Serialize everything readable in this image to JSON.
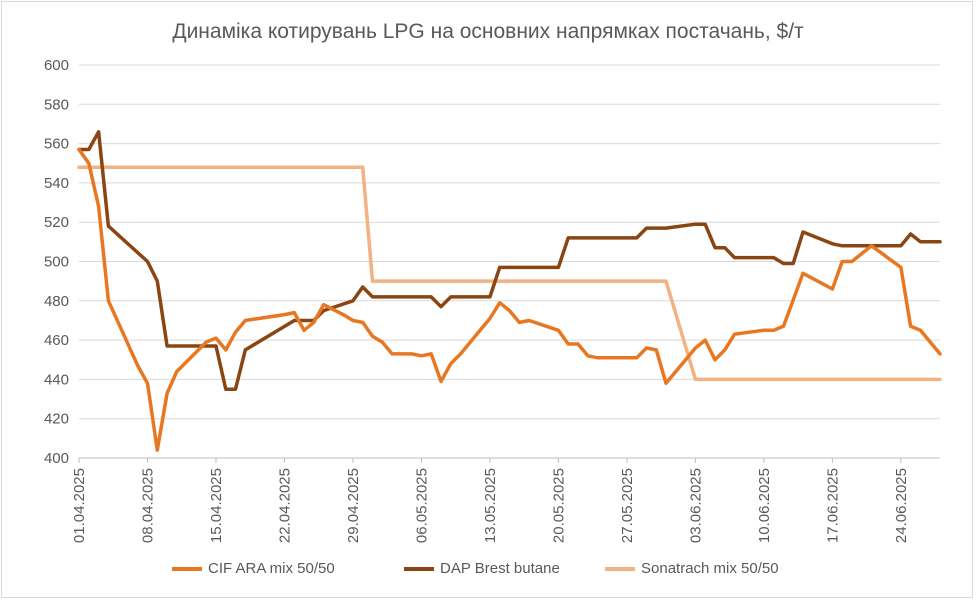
{
  "chart_data": {
    "type": "line",
    "title": "Динаміка котирувань LPG на основних напрямках постачань, $/т",
    "xlabel": "",
    "ylabel": "",
    "ylim": [
      400,
      600
    ],
    "yticks": [
      400,
      420,
      440,
      460,
      480,
      500,
      520,
      540,
      560,
      580,
      600
    ],
    "xlim": [
      "2025-04-01",
      "2025-06-28"
    ],
    "xticks": [
      "01.04.2025",
      "08.04.2025",
      "15.04.2025",
      "22.04.2025",
      "29.04.2025",
      "06.05.2025",
      "13.05.2025",
      "20.05.2025",
      "27.05.2025",
      "03.06.2025",
      "10.06.2025",
      "17.06.2025",
      "24.06.2025"
    ],
    "grid": true,
    "legend_position": "bottom",
    "series": [
      {
        "name": "CIF ARA mix 50/50",
        "color": "#E87722",
        "points": [
          [
            "2025-04-01",
            557
          ],
          [
            "2025-04-02",
            550
          ],
          [
            "2025-04-03",
            528
          ],
          [
            "2025-04-04",
            480
          ],
          [
            "2025-04-07",
            447
          ],
          [
            "2025-04-08",
            438
          ],
          [
            "2025-04-09",
            404
          ],
          [
            "2025-04-10",
            433
          ],
          [
            "2025-04-11",
            444
          ],
          [
            "2025-04-14",
            459
          ],
          [
            "2025-04-15",
            461
          ],
          [
            "2025-04-16",
            455
          ],
          [
            "2025-04-17",
            464
          ],
          [
            "2025-04-18",
            470
          ],
          [
            "2025-04-22",
            473
          ],
          [
            "2025-04-23",
            474
          ],
          [
            "2025-04-24",
            465
          ],
          [
            "2025-04-25",
            469
          ],
          [
            "2025-04-26",
            478
          ],
          [
            "2025-04-28",
            473
          ],
          [
            "2025-04-29",
            470
          ],
          [
            "2025-04-30",
            469
          ],
          [
            "2025-05-01",
            462
          ],
          [
            "2025-05-02",
            459
          ],
          [
            "2025-05-03",
            453
          ],
          [
            "2025-05-05",
            453
          ],
          [
            "2025-05-06",
            452
          ],
          [
            "2025-05-07",
            453
          ],
          [
            "2025-05-08",
            439
          ],
          [
            "2025-05-09",
            448
          ],
          [
            "2025-05-10",
            453
          ],
          [
            "2025-05-12",
            465
          ],
          [
            "2025-05-13",
            471
          ],
          [
            "2025-05-14",
            479
          ],
          [
            "2025-05-15",
            475
          ],
          [
            "2025-05-16",
            469
          ],
          [
            "2025-05-17",
            470
          ],
          [
            "2025-05-20",
            465
          ],
          [
            "2025-05-21",
            458
          ],
          [
            "2025-05-22",
            458
          ],
          [
            "2025-05-23",
            452
          ],
          [
            "2025-05-24",
            451
          ],
          [
            "2025-05-27",
            451
          ],
          [
            "2025-05-28",
            451
          ],
          [
            "2025-05-29",
            456
          ],
          [
            "2025-05-30",
            455
          ],
          [
            "2025-05-31",
            438
          ],
          [
            "2025-06-03",
            456
          ],
          [
            "2025-06-04",
            460
          ],
          [
            "2025-06-05",
            450
          ],
          [
            "2025-06-06",
            455
          ],
          [
            "2025-06-07",
            463
          ],
          [
            "2025-06-10",
            465
          ],
          [
            "2025-06-11",
            465
          ],
          [
            "2025-06-12",
            467
          ],
          [
            "2025-06-14",
            494
          ],
          [
            "2025-06-17",
            486
          ],
          [
            "2025-06-18",
            500
          ],
          [
            "2025-06-19",
            500
          ],
          [
            "2025-06-21",
            508
          ],
          [
            "2025-06-24",
            497
          ],
          [
            "2025-06-25",
            467
          ],
          [
            "2025-06-26",
            465
          ],
          [
            "2025-06-28",
            453
          ]
        ]
      },
      {
        "name": "DAP Brest butane",
        "color": "#8B4513",
        "points": [
          [
            "2025-04-01",
            557
          ],
          [
            "2025-04-02",
            557
          ],
          [
            "2025-04-03",
            566
          ],
          [
            "2025-04-04",
            518
          ],
          [
            "2025-04-08",
            500
          ],
          [
            "2025-04-09",
            490
          ],
          [
            "2025-04-10",
            457
          ],
          [
            "2025-04-15",
            457
          ],
          [
            "2025-04-16",
            435
          ],
          [
            "2025-04-17",
            435
          ],
          [
            "2025-04-18",
            455
          ],
          [
            "2025-04-23",
            470
          ],
          [
            "2025-04-25",
            470
          ],
          [
            "2025-04-26",
            475
          ],
          [
            "2025-04-29",
            480
          ],
          [
            "2025-04-30",
            487
          ],
          [
            "2025-05-01",
            482
          ],
          [
            "2025-05-07",
            482
          ],
          [
            "2025-05-08",
            477
          ],
          [
            "2025-05-09",
            482
          ],
          [
            "2025-05-13",
            482
          ],
          [
            "2025-05-14",
            497
          ],
          [
            "2025-05-20",
            497
          ],
          [
            "2025-05-21",
            512
          ],
          [
            "2025-05-28",
            512
          ],
          [
            "2025-05-29",
            517
          ],
          [
            "2025-05-31",
            517
          ],
          [
            "2025-06-03",
            519
          ],
          [
            "2025-06-04",
            519
          ],
          [
            "2025-06-05",
            507
          ],
          [
            "2025-06-06",
            507
          ],
          [
            "2025-06-07",
            502
          ],
          [
            "2025-06-10",
            502
          ],
          [
            "2025-06-11",
            502
          ],
          [
            "2025-06-12",
            499
          ],
          [
            "2025-06-13",
            499
          ],
          [
            "2025-06-14",
            515
          ],
          [
            "2025-06-17",
            509
          ],
          [
            "2025-06-18",
            508
          ],
          [
            "2025-06-24",
            508
          ],
          [
            "2025-06-25",
            514
          ],
          [
            "2025-06-26",
            510
          ],
          [
            "2025-06-28",
            510
          ]
        ]
      },
      {
        "name": "Sonatrach mix 50/50",
        "color": "#F4B183",
        "points": [
          [
            "2025-04-01",
            548
          ],
          [
            "2025-04-30",
            548
          ],
          [
            "2025-05-01",
            490
          ],
          [
            "2025-05-31",
            490
          ],
          [
            "2025-06-03",
            440
          ],
          [
            "2025-06-28",
            440
          ]
        ]
      }
    ]
  }
}
